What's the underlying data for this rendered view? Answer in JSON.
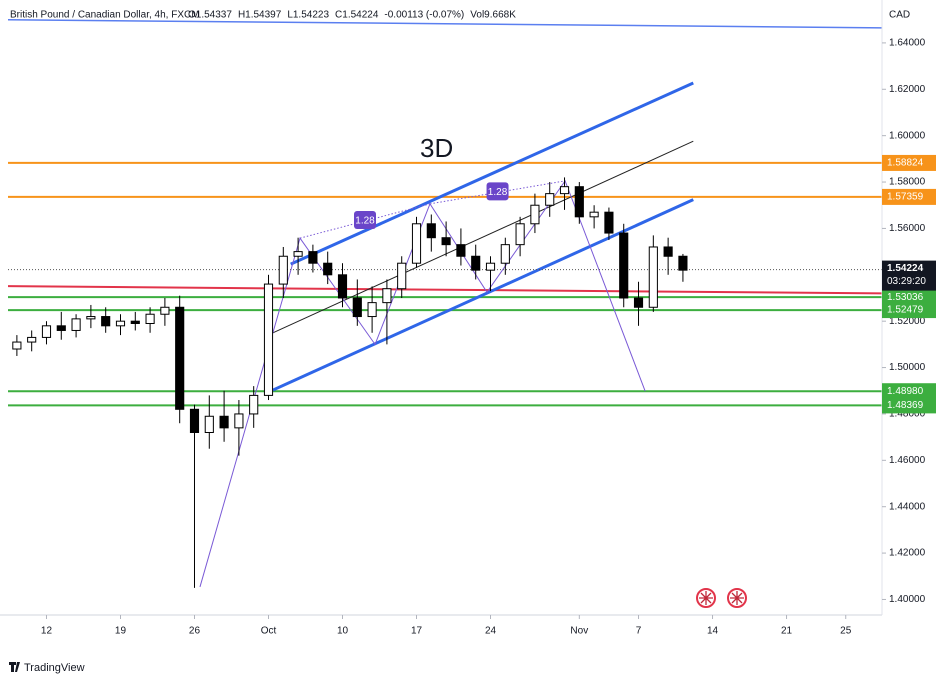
{
  "chart_data": {
    "type": "candlestick",
    "title": "British Pound / Canadian Dollar, 4h, FXCM",
    "ohlc_header": [
      "O1.54337",
      "H1.54397",
      "L1.54223",
      "C1.54224",
      "-0.00113 (-0.07%)",
      "Vol9.668K"
    ],
    "currency": "CAD",
    "annotation": "3D",
    "countdown": "03:29:20",
    "brand": "TradingView",
    "x": [
      -2,
      -1,
      0,
      1,
      2,
      3,
      4,
      5,
      6,
      7,
      8,
      9,
      10,
      11,
      12,
      13,
      14,
      15,
      16,
      17,
      18,
      19,
      20,
      21,
      22,
      23,
      24,
      25,
      26,
      27,
      28,
      29,
      30,
      31,
      32,
      33,
      34,
      35,
      36,
      37,
      38,
      39,
      40,
      41,
      42,
      43
    ],
    "open": [
      1.508,
      1.511,
      1.513,
      1.518,
      1.516,
      1.521,
      1.522,
      1.518,
      1.52,
      1.519,
      1.523,
      1.526,
      1.482,
      1.472,
      1.479,
      1.474,
      1.48,
      1.488,
      1.536,
      1.548,
      1.55,
      1.545,
      1.54,
      1.53,
      1.522,
      1.528,
      1.534,
      1.545,
      1.562,
      1.556,
      1.553,
      1.548,
      1.542,
      1.545,
      1.553,
      1.562,
      1.57,
      1.575,
      1.578,
      1.565,
      1.567,
      1.558,
      1.53,
      1.526,
      1.552,
      1.548
    ],
    "high": [
      1.514,
      1.516,
      1.52,
      1.524,
      1.523,
      1.527,
      1.526,
      1.523,
      1.524,
      1.526,
      1.53,
      1.531,
      1.484,
      1.488,
      1.49,
      1.486,
      1.492,
      1.54,
      1.552,
      1.556,
      1.553,
      1.55,
      1.545,
      1.538,
      1.535,
      1.538,
      1.548,
      1.565,
      1.566,
      1.563,
      1.56,
      1.553,
      1.548,
      1.556,
      1.565,
      1.575,
      1.58,
      1.582,
      1.58,
      1.57,
      1.569,
      1.562,
      1.537,
      1.557,
      1.556,
      1.549
    ],
    "low": [
      1.505,
      1.507,
      1.51,
      1.512,
      1.513,
      1.517,
      1.515,
      1.514,
      1.516,
      1.515,
      1.518,
      1.476,
      1.405,
      1.465,
      1.468,
      1.462,
      1.474,
      1.486,
      1.53,
      1.54,
      1.541,
      1.536,
      1.526,
      1.518,
      1.515,
      1.51,
      1.53,
      1.543,
      1.55,
      1.548,
      1.544,
      1.538,
      1.533,
      1.54,
      1.548,
      1.558,
      1.565,
      1.568,
      1.562,
      1.56,
      1.555,
      1.526,
      1.518,
      1.524,
      1.54,
      1.537
    ],
    "close": [
      1.511,
      1.513,
      1.518,
      1.516,
      1.521,
      1.522,
      1.518,
      1.52,
      1.519,
      1.523,
      1.526,
      1.482,
      1.472,
      1.479,
      1.474,
      1.48,
      1.488,
      1.536,
      1.548,
      1.55,
      1.545,
      1.54,
      1.53,
      1.522,
      1.528,
      1.534,
      1.545,
      1.562,
      1.556,
      1.553,
      1.548,
      1.542,
      1.545,
      1.553,
      1.562,
      1.57,
      1.575,
      1.578,
      1.565,
      1.567,
      1.558,
      1.53,
      1.526,
      1.552,
      1.548,
      1.542
    ],
    "up_color": "#ffffff",
    "down_color": "#000000",
    "xlim": [
      -2.6,
      56.45
    ],
    "xticks": [
      {
        "value": 0,
        "label": "12"
      },
      {
        "value": 5,
        "label": "19"
      },
      {
        "value": 10,
        "label": "26"
      },
      {
        "value": 15,
        "label": "Oct"
      },
      {
        "value": 20,
        "label": "10"
      },
      {
        "value": 25,
        "label": "17"
      },
      {
        "value": 30,
        "label": "24"
      },
      {
        "value": 36,
        "label": "Nov"
      },
      {
        "value": 40,
        "label": "7"
      },
      {
        "value": 45,
        "label": "14"
      },
      {
        "value": 50,
        "label": "21"
      },
      {
        "value": 54,
        "label": "25"
      }
    ],
    "ylim": [
      1.3933,
      1.6585
    ],
    "yticks": [
      {
        "value": 1.4,
        "label": "1.40000"
      },
      {
        "value": 1.42,
        "label": "1.42000"
      },
      {
        "value": 1.44,
        "label": "1.44000"
      },
      {
        "value": 1.46,
        "label": "1.46000"
      },
      {
        "value": 1.48,
        "label": "1.48000"
      },
      {
        "value": 1.5,
        "label": "1.50000"
      },
      {
        "value": 1.52,
        "label": "1.52000"
      },
      {
        "value": 1.54,
        "label": "1.54000"
      },
      {
        "value": 1.56,
        "label": "1.56000"
      },
      {
        "value": 1.58,
        "label": "1.58000"
      },
      {
        "value": 1.6,
        "label": "1.60000"
      },
      {
        "value": 1.62,
        "label": "1.62000"
      },
      {
        "value": 1.64,
        "label": "1.64000"
      }
    ],
    "current_price": 1.54224,
    "levels": [
      {
        "value": 1.58824,
        "label": "1.58824",
        "color": "#f7931a"
      },
      {
        "value": 1.57359,
        "label": "1.57359",
        "color": "#f7931a"
      },
      {
        "value": 1.53036,
        "label": "1.53036",
        "color": "#3cae3f"
      },
      {
        "value": 1.52479,
        "label": "1.52479",
        "color": "#3cae3f"
      },
      {
        "value": 1.4898,
        "label": "1.48980",
        "color": "#3cae3f"
      },
      {
        "value": 1.48369,
        "label": "1.48369",
        "color": "#3cae3f"
      }
    ],
    "trendlines": [
      {
        "color": "#5b7ff0",
        "width": 1.5,
        "points": [
          [
            -2.6,
            1.65
          ],
          [
            56.45,
            1.6465
          ]
        ]
      },
      {
        "color": "#e2344a",
        "width": 2,
        "points": [
          [
            -2.6,
            1.5351
          ],
          [
            56.45,
            1.532
          ]
        ]
      },
      {
        "color": "#2f66e8",
        "width": 3,
        "points": [
          [
            16.5,
            1.5446
          ],
          [
            43.7,
            1.6227
          ]
        ]
      },
      {
        "color": "#2f66e8",
        "width": 3,
        "points": [
          [
            15.3,
            1.4903
          ],
          [
            43.7,
            1.5724
          ]
        ]
      },
      {
        "color": "#222222",
        "width": 1,
        "points": [
          [
            15.3,
            1.515
          ],
          [
            43.7,
            1.5976
          ]
        ]
      },
      {
        "color": "#7a5ad6",
        "width": 1,
        "points": [
          [
            10.37,
            1.4054
          ],
          [
            17.13,
            1.5558
          ],
          [
            22.2,
            1.51
          ],
          [
            25.91,
            1.5706
          ],
          [
            29.76,
            1.5325
          ],
          [
            35.04,
            1.5805
          ],
          [
            40.45,
            1.4898
          ]
        ]
      },
      {
        "color": "#7a5ad6",
        "width": 1,
        "style": "dotted",
        "label": "1.28",
        "points": [
          [
            17.13,
            1.5558
          ],
          [
            25.91,
            1.5706
          ]
        ]
      },
      {
        "color": "#7a5ad6",
        "width": 1,
        "style": "dotted",
        "label": "1.28",
        "points": [
          [
            25.91,
            1.5706
          ],
          [
            35.04,
            1.5805
          ]
        ]
      }
    ]
  }
}
